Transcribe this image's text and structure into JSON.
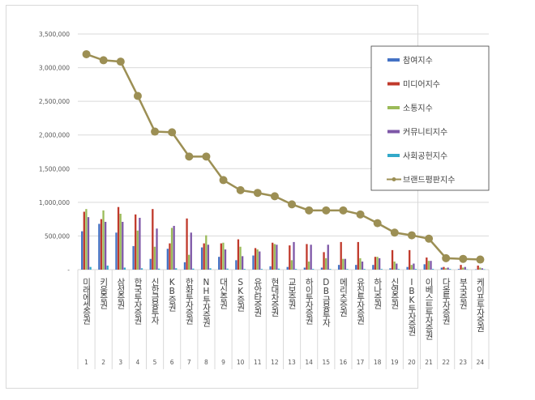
{
  "chart_data": {
    "type": "bar+line",
    "title": "",
    "xlabel": "",
    "ylabel": "",
    "ylim": [
      0,
      3500000
    ],
    "yticks": [
      0,
      500000,
      1000000,
      1500000,
      2000000,
      2500000,
      3000000,
      3500000
    ],
    "ytick_labels": [
      "-",
      "500,000",
      "1,000,000",
      "1,500,000",
      "2,000,000",
      "2,500,000",
      "3,000,000",
      "3,500,000"
    ],
    "grid": true,
    "legend_position": "upper-right",
    "ranks": [
      "1",
      "2",
      "3",
      "4",
      "5",
      "6",
      "7",
      "8",
      "9",
      "10",
      "11",
      "12",
      "13",
      "14",
      "15",
      "16",
      "17",
      "18",
      "19",
      "20",
      "21",
      "22",
      "23",
      "24"
    ],
    "categories": [
      "미래에셋증권",
      "키움증권",
      "삼성증권",
      "한국투자증권",
      "신한금융투자",
      "KB증권",
      "한화투자증권",
      "NH투자증권",
      "대신증권",
      "SK증권",
      "유안타증권",
      "현대차증권",
      "교보증권",
      "하이투자증권",
      "DB금융투자",
      "메리츠증권",
      "유진투자증권",
      "하나증권",
      "신영증권",
      "IBK투자증권",
      "이베스트투자증권",
      "다올투자증권",
      "부국증권",
      "케이프투자증권"
    ],
    "series": [
      {
        "name": "참여지수",
        "type": "bar",
        "color": "#4472C4",
        "values": [
          570000,
          680000,
          550000,
          350000,
          160000,
          310000,
          110000,
          330000,
          190000,
          140000,
          210000,
          50000,
          40000,
          30000,
          30000,
          70000,
          70000,
          70000,
          20000,
          40000,
          80000,
          30000,
          10000,
          5000
        ]
      },
      {
        "name": "미디어지수",
        "type": "bar",
        "color": "#C0392B",
        "values": [
          860000,
          750000,
          930000,
          820000,
          900000,
          390000,
          760000,
          390000,
          390000,
          450000,
          320000,
          400000,
          360000,
          380000,
          260000,
          410000,
          410000,
          190000,
          290000,
          290000,
          180000,
          40000,
          70000,
          60000
        ]
      },
      {
        "name": "소통지수",
        "type": "bar",
        "color": "#9BBB59",
        "values": [
          900000,
          880000,
          830000,
          580000,
          340000,
          620000,
          220000,
          510000,
          400000,
          340000,
          300000,
          380000,
          140000,
          120000,
          170000,
          160000,
          170000,
          190000,
          120000,
          70000,
          130000,
          20000,
          30000,
          30000
        ]
      },
      {
        "name": "커뮤니티지수",
        "type": "bar",
        "color": "#7E57A7",
        "values": [
          780000,
          710000,
          710000,
          770000,
          610000,
          650000,
          550000,
          370000,
          300000,
          200000,
          270000,
          370000,
          410000,
          370000,
          370000,
          160000,
          120000,
          170000,
          90000,
          90000,
          130000,
          30000,
          40000,
          20000
        ]
      },
      {
        "name": "사회공헌지수",
        "type": "bar",
        "color": "#33A9C9",
        "values": [
          40000,
          60000,
          30000,
          20000,
          15000,
          20000,
          15000,
          20000,
          15000,
          10000,
          10000,
          15000,
          10000,
          10000,
          10000,
          10000,
          10000,
          10000,
          10000,
          10000,
          10000,
          10000,
          5000,
          5000
        ]
      },
      {
        "name": "브랜드평판지수",
        "type": "line",
        "color": "#9C8F54",
        "values": [
          3200000,
          3110000,
          3090000,
          2580000,
          2050000,
          2040000,
          1680000,
          1680000,
          1330000,
          1180000,
          1140000,
          1090000,
          970000,
          880000,
          880000,
          880000,
          820000,
          690000,
          550000,
          510000,
          460000,
          170000,
          160000,
          150000
        ]
      }
    ]
  }
}
